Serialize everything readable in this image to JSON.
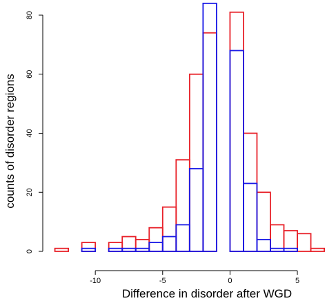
{
  "chart_data": {
    "type": "histogram",
    "xlabel": "Difference in disorder after WGD",
    "ylabel": "counts of disorder regions",
    "bins": [
      -13,
      -12,
      -11,
      -10,
      -9,
      -8,
      -7,
      -6,
      -5,
      -4,
      -3,
      -2,
      -1,
      0,
      1,
      2,
      3,
      4,
      5,
      6,
      7
    ],
    "series": [
      {
        "color": "#e8222a",
        "values": [
          1,
          0,
          3,
          0,
          3,
          5,
          4,
          8,
          15,
          31,
          60,
          74,
          0,
          81,
          40,
          20,
          9,
          7,
          6,
          1
        ]
      },
      {
        "color": "#1a1ae6",
        "values": [
          0,
          0,
          1,
          0,
          1,
          1,
          1,
          3,
          5,
          9,
          28,
          84,
          0,
          68,
          23,
          4,
          1,
          1,
          0,
          0
        ]
      }
    ],
    "xlim": [
      -13.9,
      7.2
    ],
    "ylim": [
      0,
      80
    ],
    "xticks": [
      -10,
      -5,
      0,
      5
    ],
    "yticks": [
      0,
      20,
      40,
      60,
      80
    ]
  }
}
